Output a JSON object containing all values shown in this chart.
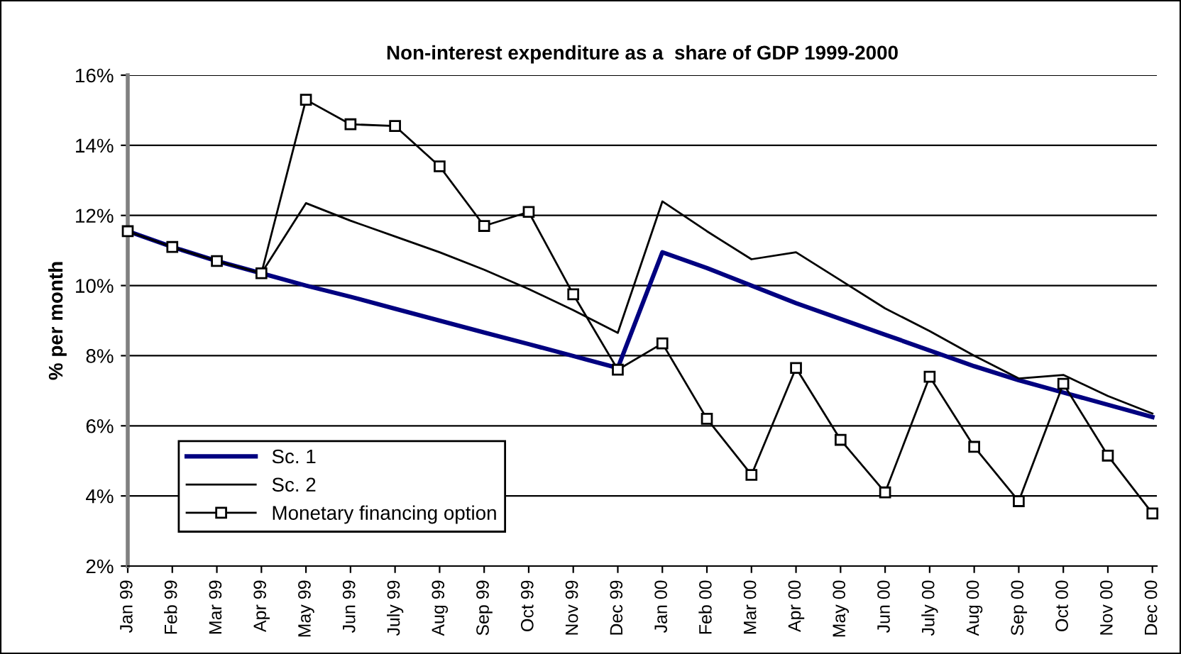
{
  "chart_data": {
    "type": "line",
    "title": "Non-interest expenditure as a  share of GDP 1999-2000",
    "ylabel": "% per month",
    "categories": [
      "Jan 99",
      "Feb 99",
      "Mar 99",
      "Apr 99",
      "May 99",
      "Jun 99",
      "July 99",
      "Aug 99",
      "Sep 99",
      "Oct 99",
      "Nov 99",
      "Dec 99",
      "Jan 00",
      "Feb 00",
      "Mar 00",
      "Apr 00",
      "May 00",
      "Jun 00",
      "July 00",
      "Aug 00",
      "Sep 00",
      "Oct 00",
      "Nov 00",
      "Dec 00"
    ],
    "series": [
      {
        "name": "Sc. 1",
        "color": "#000080",
        "marker": "none",
        "values": [
          11.55,
          11.1,
          10.7,
          10.35,
          10.0,
          9.68,
          9.34,
          9.0,
          8.66,
          8.33,
          7.99,
          7.65,
          10.95,
          10.5,
          10.0,
          9.5,
          9.05,
          8.6,
          8.15,
          7.7,
          7.3,
          6.95,
          6.6,
          6.25
        ]
      },
      {
        "name": "Sc. 2",
        "color": "#000000",
        "marker": "none",
        "values": [
          11.55,
          11.1,
          10.7,
          10.35,
          12.35,
          11.85,
          11.4,
          10.95,
          10.45,
          9.9,
          9.3,
          8.65,
          12.4,
          11.55,
          10.75,
          10.95,
          10.15,
          9.35,
          8.7,
          8.0,
          7.35,
          7.45,
          6.85,
          6.35
        ]
      },
      {
        "name": "Monetary financing option",
        "color": "#000000",
        "marker": "square",
        "values": [
          11.55,
          11.1,
          10.7,
          10.35,
          15.3,
          14.6,
          14.55,
          13.4,
          11.7,
          12.1,
          9.75,
          7.6,
          8.35,
          6.2,
          4.6,
          7.65,
          5.6,
          4.1,
          7.4,
          5.4,
          3.85,
          7.2,
          5.15,
          3.5
        ]
      }
    ],
    "ylim": [
      2,
      16
    ],
    "yticks": [
      {
        "value": 2,
        "label": "2%"
      },
      {
        "value": 4,
        "label": "4%"
      },
      {
        "value": 6,
        "label": "6%"
      },
      {
        "value": 8,
        "label": "8%"
      },
      {
        "value": 10,
        "label": "10%"
      },
      {
        "value": 12,
        "label": "12%"
      },
      {
        "value": 14,
        "label": "14%"
      },
      {
        "value": 16,
        "label": "16%"
      }
    ],
    "grid": "y",
    "legend": "bottom left"
  }
}
